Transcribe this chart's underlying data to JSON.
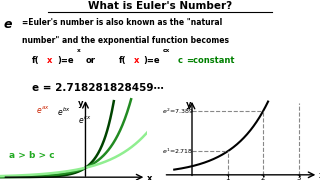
{
  "title": "What is Euler's Number?",
  "bg_color": "#ffffff",
  "euler_value": "e = 2.718281828459⋯",
  "e2_label": "e²=7.389",
  "e1_label": "e¹=2.718",
  "curve_colors": [
    "#004400",
    "#228B22",
    "#90EE90"
  ],
  "left_label_color": "#22aa22",
  "title_fontsize": 7.5,
  "body_fontsize": 5.5,
  "eq_fontsize": 6.0,
  "euler_fontsize": 7.5
}
